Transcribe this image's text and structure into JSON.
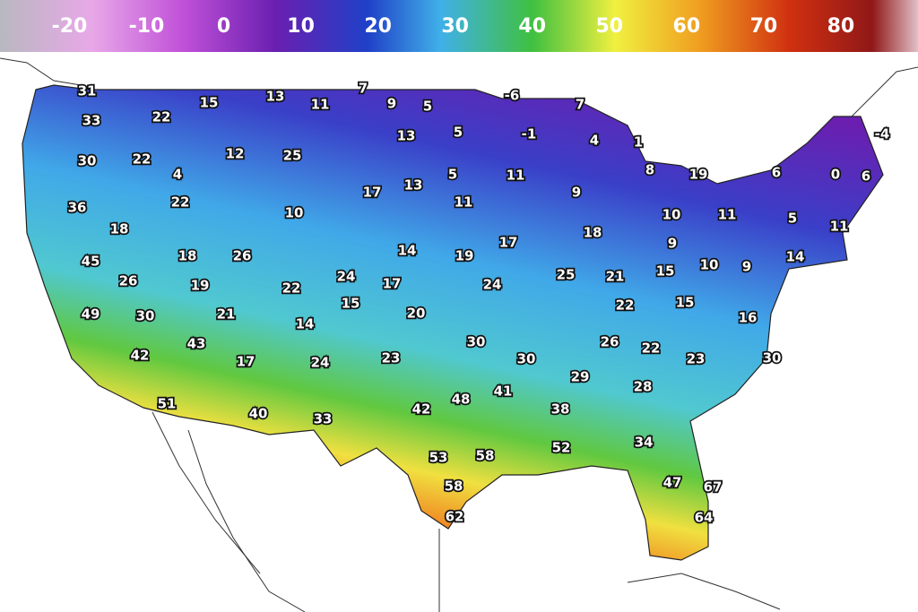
{
  "legend": {
    "lim": [
      -29,
      90
    ],
    "ticks": [
      -20,
      -10,
      0,
      10,
      20,
      30,
      40,
      50,
      60,
      70,
      80
    ]
  },
  "labels": [
    31,
    33,
    22,
    15,
    13,
    11,
    7,
    9,
    5,
    -6,
    7,
    30,
    22,
    4,
    12,
    25,
    13,
    5,
    -1,
    4,
    1,
    36,
    22,
    10,
    17,
    13,
    5,
    11,
    9,
    8,
    19,
    6,
    0,
    6,
    -4,
    18,
    11,
    10,
    11,
    5,
    11,
    45,
    18,
    26,
    14,
    19,
    17,
    18,
    9,
    14,
    26,
    19,
    22,
    24,
    17,
    24,
    25,
    21,
    15,
    10,
    9,
    15,
    49,
    30,
    21,
    14,
    20,
    22,
    15,
    16,
    43,
    30,
    26,
    22,
    42,
    17,
    24,
    23,
    30,
    23,
    30,
    29,
    28,
    41,
    48,
    42,
    51,
    40,
    33,
    38,
    34,
    53,
    58,
    52,
    47,
    67,
    58,
    62,
    64
  ]
}
